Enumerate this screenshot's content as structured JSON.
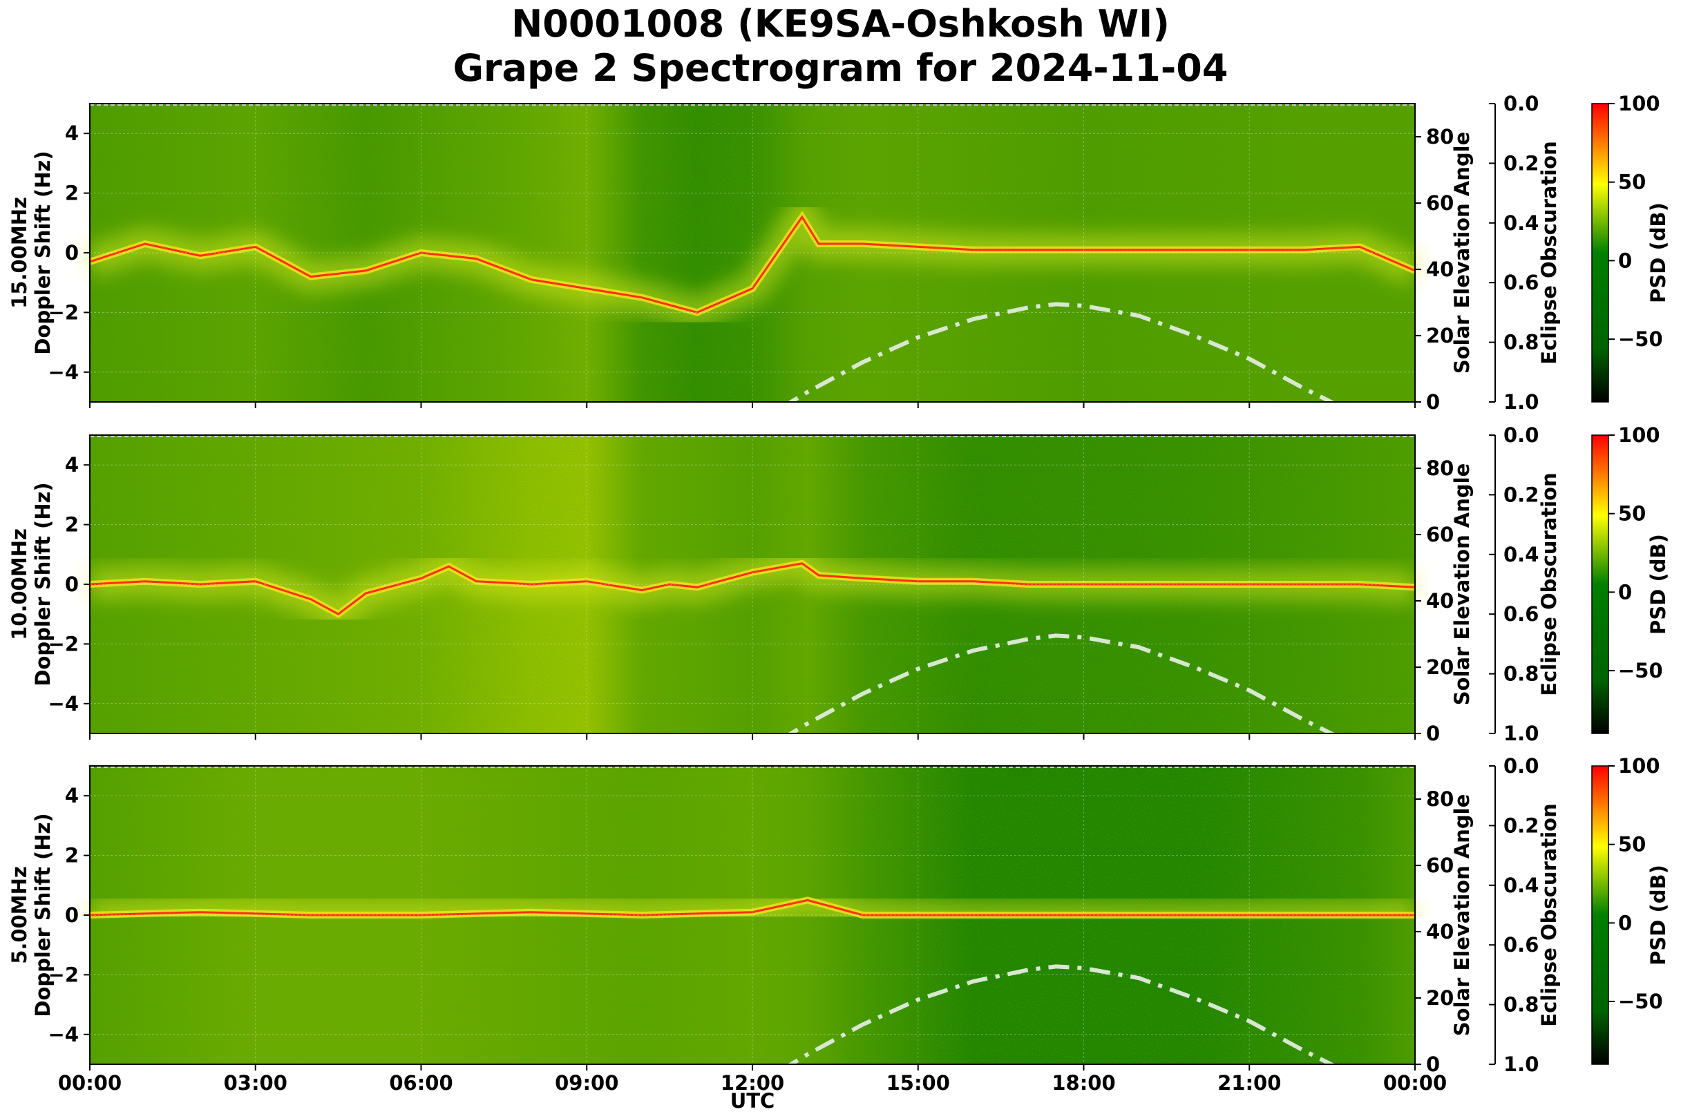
{
  "title_line1": "N0001008 (KE9SA-Oshkosh WI)",
  "title_line2": "Grape 2 Spectrogram for 2024-11-04",
  "xlabel": "UTC",
  "xticks": [
    "00:00",
    "03:00",
    "06:00",
    "09:00",
    "12:00",
    "15:00",
    "18:00",
    "21:00",
    "00:00"
  ],
  "colors": {
    "colormap": [
      "#000000",
      "#006400",
      "#008000",
      "#ffff00",
      "#ff0000"
    ],
    "elevation_curve": "#d8e8d0"
  },
  "chart_data": [
    {
      "type": "heatmap",
      "panel_label": "15.00MHz",
      "ylabel": "Doppler Shift (Hz)",
      "ylim": [
        -5,
        5
      ],
      "yticks": [
        "4",
        "2",
        "0",
        "−2",
        "−4"
      ],
      "x_range_hours": [
        0,
        24
      ],
      "doppler_trace": {
        "hours": [
          0,
          1,
          2,
          3,
          4,
          5,
          6,
          7,
          8,
          9,
          10,
          11,
          12,
          12.9,
          13.2,
          14,
          15,
          16,
          17,
          18,
          19,
          20,
          21,
          22,
          23,
          24
        ],
        "hz": [
          -0.3,
          0.3,
          -0.1,
          0.2,
          -0.8,
          -0.6,
          0,
          -0.2,
          -0.9,
          -1.2,
          -1.5,
          -2.0,
          -1.2,
          1.2,
          0.3,
          0.3,
          0.2,
          0.1,
          0.1,
          0.1,
          0.1,
          0.1,
          0.1,
          0.1,
          0.2,
          -0.6
        ]
      },
      "solar_elevation": {
        "axis_label": "Solar Elevation Angle",
        "ylim": [
          0,
          90
        ],
        "yticks": [
          "0",
          "20",
          "40",
          "60",
          "80"
        ],
        "hours": [
          12.5,
          13,
          14,
          15,
          16,
          17,
          17.5,
          18,
          19,
          20,
          21,
          22,
          22.6
        ],
        "degrees": [
          -2,
          3,
          12,
          19.5,
          25,
          28.5,
          29.5,
          29,
          26,
          20,
          13,
          4,
          -1
        ]
      },
      "eclipse_obscuration": {
        "axis_label": "Eclipse Obscuration",
        "ylim": [
          0.0,
          1.0
        ],
        "yticks": [
          "0.0",
          "0.2",
          "0.4",
          "0.6",
          "0.8",
          "1.0"
        ]
      },
      "colorbar": {
        "label": "PSD (dB)",
        "range": [
          -90,
          100
        ],
        "ticks": [
          "100",
          "50",
          "0",
          "−50"
        ]
      }
    },
    {
      "type": "heatmap",
      "panel_label": "10.00MHz",
      "ylabel": "Doppler Shift (Hz)",
      "ylim": [
        -5,
        5
      ],
      "yticks": [
        "4",
        "2",
        "0",
        "−2",
        "−4"
      ],
      "x_range_hours": [
        0,
        24
      ],
      "doppler_trace": {
        "hours": [
          0,
          1,
          2,
          3,
          4,
          4.5,
          5,
          6,
          6.5,
          7,
          8,
          9,
          10,
          10.5,
          11,
          12,
          12.9,
          13.2,
          14,
          15,
          16,
          17,
          18,
          19,
          20,
          21,
          22,
          23,
          24
        ],
        "hz": [
          0,
          0.1,
          0,
          0.1,
          -0.5,
          -1.0,
          -0.3,
          0.2,
          0.6,
          0.1,
          0,
          0.1,
          -0.2,
          0,
          -0.1,
          0.4,
          0.7,
          0.3,
          0.2,
          0.1,
          0.1,
          0,
          0,
          0,
          0,
          0,
          0,
          0,
          -0.1
        ]
      },
      "solar_elevation": {
        "axis_label": "Solar Elevation Angle",
        "ylim": [
          0,
          90
        ],
        "yticks": [
          "0",
          "20",
          "40",
          "60",
          "80"
        ],
        "hours": [
          12.5,
          13,
          14,
          15,
          16,
          17,
          17.5,
          18,
          19,
          20,
          21,
          22,
          22.6
        ],
        "degrees": [
          -2,
          3,
          12,
          19.5,
          25,
          28.5,
          29.5,
          29,
          26,
          20,
          13,
          4,
          -1
        ]
      },
      "eclipse_obscuration": {
        "axis_label": "Eclipse Obscuration",
        "ylim": [
          0.0,
          1.0
        ],
        "yticks": [
          "0.0",
          "0.2",
          "0.4",
          "0.6",
          "0.8",
          "1.0"
        ]
      },
      "colorbar": {
        "label": "PSD (dB)",
        "range": [
          -90,
          100
        ],
        "ticks": [
          "100",
          "50",
          "0",
          "−50"
        ]
      }
    },
    {
      "type": "heatmap",
      "panel_label": "5.00MHz",
      "ylabel": "Doppler Shift (Hz)",
      "ylim": [
        -5,
        5
      ],
      "yticks": [
        "4",
        "2",
        "0",
        "−2",
        "−4"
      ],
      "x_range_hours": [
        0,
        24
      ],
      "doppler_trace": {
        "hours": [
          0,
          2,
          4,
          6,
          8,
          10,
          12,
          13,
          14,
          16,
          18,
          20,
          22,
          24
        ],
        "hz": [
          0,
          0.1,
          0,
          0,
          0.1,
          0,
          0.1,
          0.5,
          0,
          0,
          0,
          0,
          0,
          0
        ]
      },
      "solar_elevation": {
        "axis_label": "Solar Elevation Angle",
        "ylim": [
          0,
          90
        ],
        "yticks": [
          "0",
          "20",
          "40",
          "60",
          "80"
        ],
        "hours": [
          12.5,
          13,
          14,
          15,
          16,
          17,
          17.5,
          18,
          19,
          20,
          21,
          22,
          22.6
        ],
        "degrees": [
          -2,
          3,
          12,
          19.5,
          25,
          28.5,
          29.5,
          29,
          26,
          20,
          13,
          4,
          -1
        ]
      },
      "eclipse_obscuration": {
        "axis_label": "Eclipse Obscuration",
        "ylim": [
          0.0,
          1.0
        ],
        "yticks": [
          "0.0",
          "0.2",
          "0.4",
          "0.6",
          "0.8",
          "1.0"
        ]
      },
      "colorbar": {
        "label": "PSD (dB)",
        "range": [
          -90,
          100
        ],
        "ticks": [
          "100",
          "50",
          "0",
          "−50"
        ]
      }
    }
  ]
}
